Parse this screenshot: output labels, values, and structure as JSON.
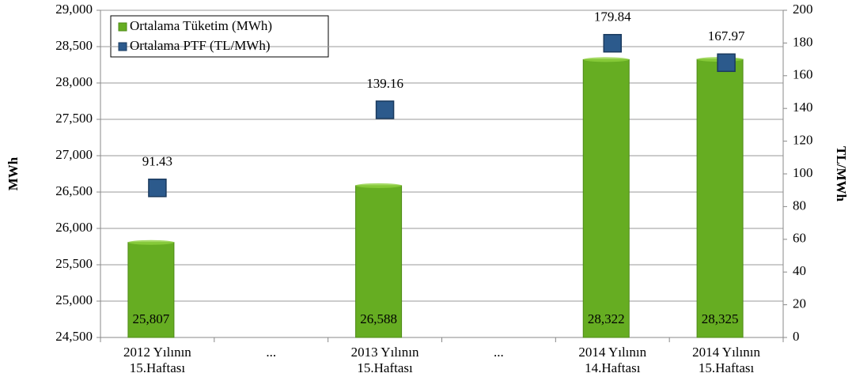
{
  "chart_data": {
    "type": "bar_marker",
    "categories": [
      "2012 Yılının 15.Haftası",
      "...",
      "2013 Yılının 15.Haftası",
      "...",
      "2014 Yılının 14.Haftası",
      "2014 Yılının 15.Haftası"
    ],
    "series": [
      {
        "name": "Ortalama Tüketim (MWh)",
        "color": "#66ad22",
        "values": [
          25807,
          null,
          26588,
          null,
          28322,
          28325
        ],
        "value_labels": [
          "25,807",
          null,
          "26,588",
          null,
          "28,322",
          "28,325"
        ]
      },
      {
        "name": "Ortalama PTF (TL/MWh)",
        "color": "#2c5a8c",
        "axis": "y2",
        "values": [
          91.43,
          null,
          139.16,
          null,
          179.84,
          167.97
        ]
      }
    ],
    "ylabel": "MWh",
    "y2label": "TL/MWh",
    "ylim": [
      24500,
      29000
    ],
    "yticks": [
      {
        "value": 24500,
        "label": "24,500"
      },
      {
        "value": 25000,
        "label": "25,000"
      },
      {
        "value": 25500,
        "label": "25,500"
      },
      {
        "value": 26000,
        "label": "26,000"
      },
      {
        "value": 26500,
        "label": "26,500"
      },
      {
        "value": 27000,
        "label": "27,000"
      },
      {
        "value": 27500,
        "label": "27,500"
      },
      {
        "value": 28000,
        "label": "28,000"
      },
      {
        "value": 28500,
        "label": "28,500"
      },
      {
        "value": 29000,
        "label": "29,000"
      }
    ],
    "y2lim": [
      0,
      200
    ],
    "y2ticks": [
      0,
      20,
      40,
      60,
      80,
      100,
      120,
      140,
      160,
      180,
      200
    ],
    "grid": true,
    "legend": "upper left"
  }
}
